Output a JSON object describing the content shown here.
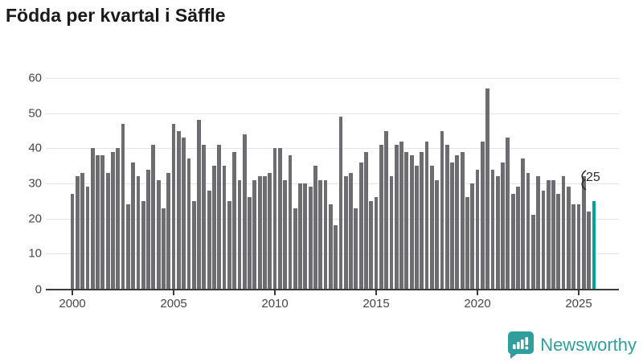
{
  "title": "Födda per kvartal i Säffle",
  "annotation": {
    "label": "25"
  },
  "logo": {
    "text": "Newsworthy"
  },
  "colors": {
    "bar": "#6d6d71",
    "highlight": "#00a0a0",
    "grid": "#e4e4e4",
    "axis": "#3b3b3b",
    "tick_label": "#474747",
    "title": "#1a1a1a",
    "logo": "#2f9e9c"
  },
  "chart_data": {
    "type": "bar",
    "title": "Födda per kvartal i Säffle",
    "frequency": "quarterly",
    "x_start": "2000-Q1",
    "x_end": "2025-Q4",
    "xlabel": "",
    "ylabel": "",
    "ylim": [
      0,
      60
    ],
    "yticks": [
      0,
      10,
      20,
      30,
      40,
      50,
      60
    ],
    "xticks": [
      2000,
      2005,
      2010,
      2015,
      2020,
      2025
    ],
    "grid": "horizontal",
    "values": [
      27,
      32,
      33,
      29,
      40,
      38,
      38,
      33,
      39,
      40,
      47,
      24,
      36,
      32,
      25,
      34,
      41,
      31,
      23,
      33,
      47,
      45,
      43,
      37,
      25,
      48,
      41,
      28,
      35,
      41,
      35,
      25,
      39,
      31,
      44,
      26,
      31,
      32,
      32,
      33,
      40,
      40,
      31,
      38,
      23,
      30,
      30,
      29,
      35,
      31,
      31,
      24,
      18,
      49,
      32,
      33,
      23,
      36,
      39,
      25,
      26,
      41,
      45,
      32,
      41,
      42,
      39,
      38,
      35,
      39,
      42,
      35,
      31,
      45,
      41,
      36,
      38,
      39,
      26,
      30,
      34,
      42,
      57,
      34,
      32,
      36,
      43,
      27,
      29,
      37,
      33,
      21,
      32,
      28,
      31,
      31,
      27,
      32,
      29,
      24,
      24,
      32,
      22,
      25
    ],
    "highlight_index": 103,
    "highlight_label": "25",
    "legend": null
  }
}
